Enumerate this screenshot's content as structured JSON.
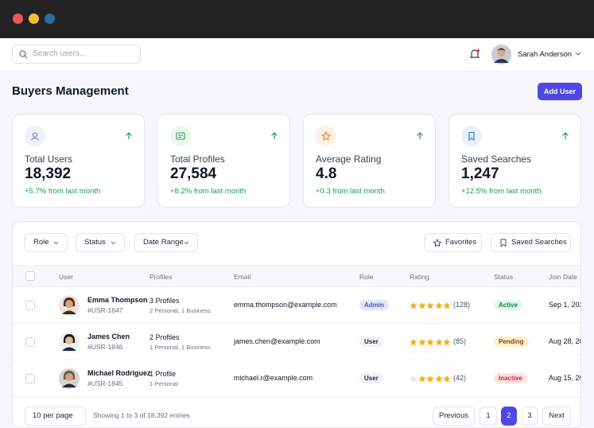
{
  "header": {
    "search_placeholder": "Search users...",
    "user_name": "Sarah Anderson"
  },
  "page": {
    "title": "Buyers Management",
    "add_button": "Add User"
  },
  "stats": [
    {
      "label": "Total Users",
      "value": "18,392",
      "change": "+5.7% from last month"
    },
    {
      "label": "Total Profiles",
      "value": "27,584",
      "change": "+8.2% from last month"
    },
    {
      "label": "Average Rating",
      "value": "4.8",
      "change": "+0.3 from last month"
    },
    {
      "label": "Saved Searches",
      "value": "1,247",
      "change": "+12.5% from last month"
    }
  ],
  "filters": [
    "Role",
    "Status",
    "Date Range"
  ],
  "actions": [
    "Favorites",
    "Saved Searches"
  ],
  "table": {
    "columns": [
      "User",
      "Profiles",
      "Email",
      "Role",
      "Rating",
      "Status",
      "Join Date"
    ],
    "rows": [
      {
        "name": "Emma Thompson",
        "id": "#USR-1847",
        "profiles": "3 Profiles",
        "profile_detail": "2 Personal, 1 Business",
        "email": "emma.thompson@example.com",
        "role": "Admin",
        "stars": 5,
        "reviews": "(128)",
        "status": "Active",
        "join_date": "Sep 1, 202"
      },
      {
        "name": "James Chen",
        "id": "#USR-1846",
        "profiles": "2 Profiles",
        "profile_detail": "1 Personal, 1 Business",
        "email": "james.chen@example.com",
        "role": "User",
        "stars": 5,
        "reviews": "(85)",
        "status": "Pending",
        "join_date": "Aug 28, 20"
      },
      {
        "name": "Michael Rodriguez",
        "id": "#USR-1845",
        "profiles": "1 Profile",
        "profile_detail": "1 Personal",
        "email": "michael.r@example.com",
        "role": "User",
        "stars": 4,
        "reviews": "(42)",
        "status": "Inactive",
        "join_date": "Aug 15, 20"
      }
    ]
  },
  "footer": {
    "per_page": "10 per page",
    "summary": "Showing 1 to 3 of 18,392 entries",
    "pages": [
      "Previous",
      "1",
      "2",
      "3",
      "Next"
    ]
  }
}
